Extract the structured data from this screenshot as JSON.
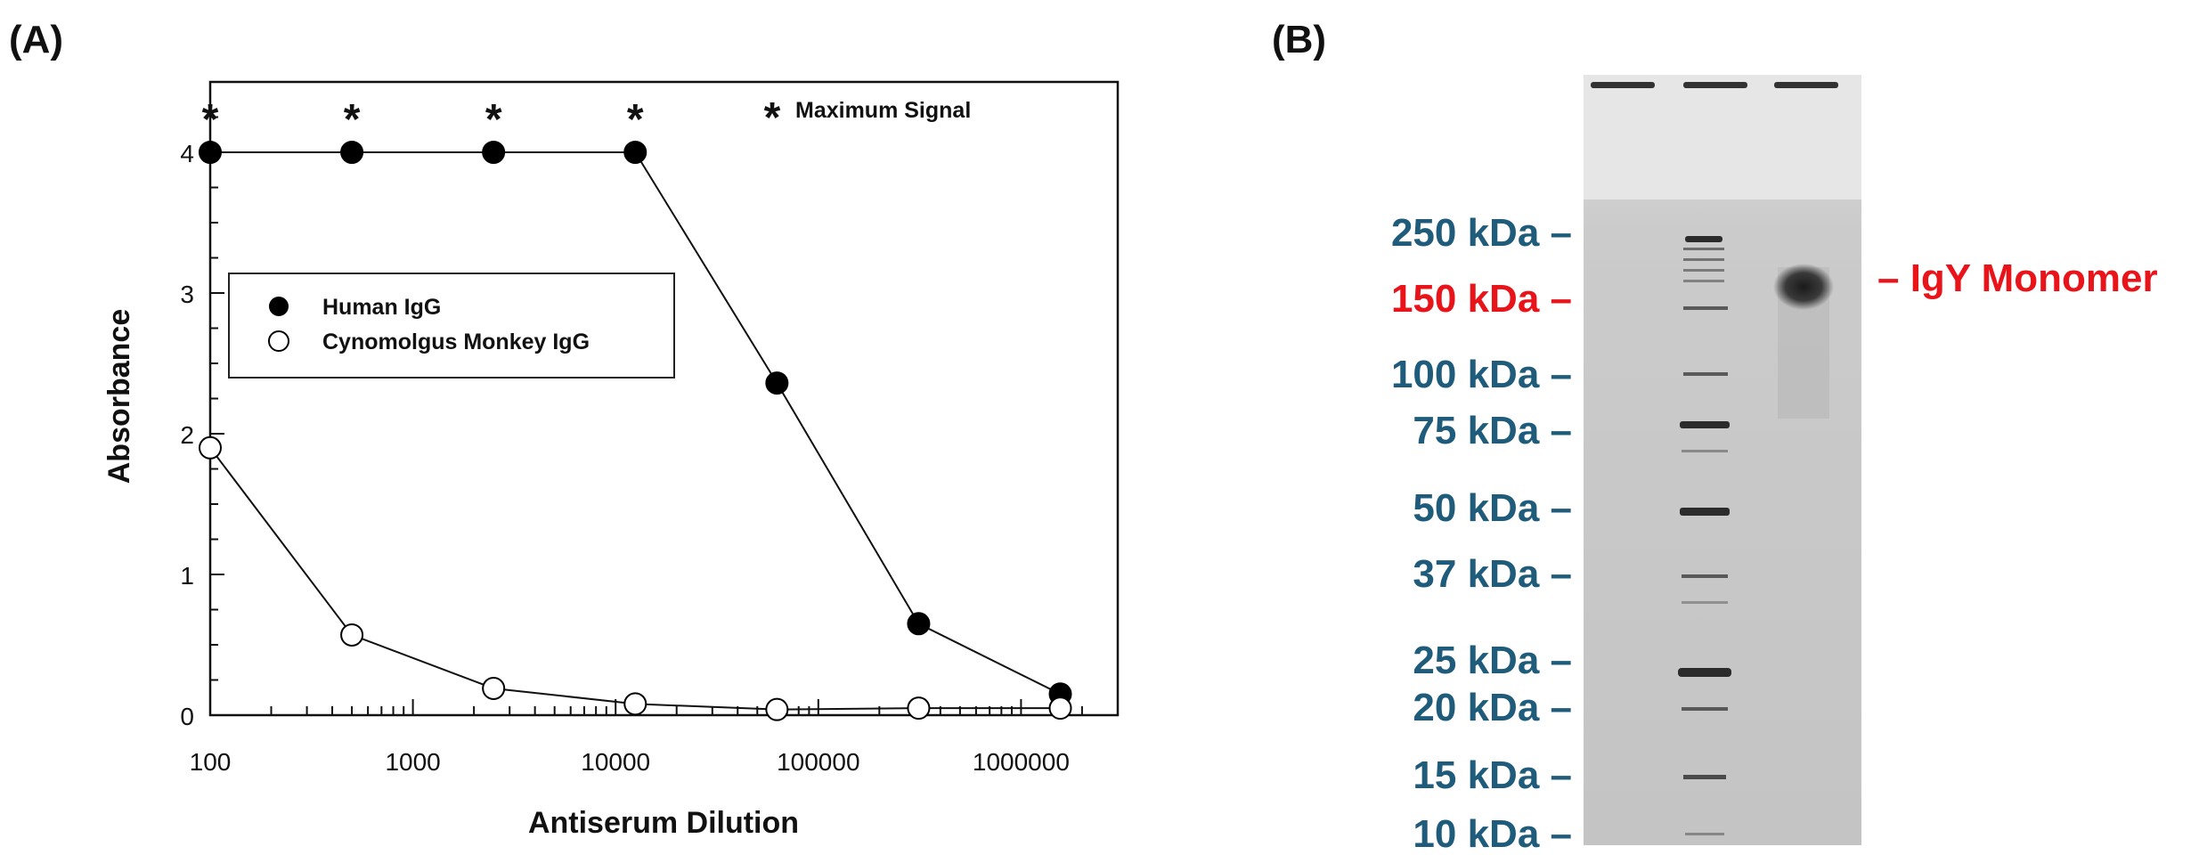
{
  "panel_a_label": "(A)",
  "panel_b_label": "(B)",
  "chart_data": {
    "type": "scatter",
    "xscale": "log",
    "xlim": [
      100,
      3000000
    ],
    "ylim": [
      0,
      4.5
    ],
    "xlabel": "Antiserum Dilution",
    "ylabel": "Absorbance",
    "xticks": [
      100,
      1000,
      10000,
      100000,
      1000000
    ],
    "xtick_labels": [
      "100",
      "1000",
      "10000",
      "100000",
      "1000000"
    ],
    "yticks": [
      0,
      1,
      2,
      3,
      4
    ],
    "ytick_labels": [
      "0",
      "1",
      "2",
      "3",
      "4"
    ],
    "legend_placement": "center-left",
    "series": [
      {
        "name": "Human IgG",
        "marker": "filled-circle",
        "color": "#000000",
        "x": [
          100,
          500,
          2500,
          12500,
          62500,
          312500,
          1562500
        ],
        "y": [
          4.0,
          4.0,
          4.0,
          4.0,
          2.36,
          0.65,
          0.15
        ]
      },
      {
        "name": "Cynomolgus Monkey IgG",
        "marker": "open-circle",
        "color": "#000000",
        "x": [
          100,
          500,
          2500,
          12500,
          62500,
          312500,
          1562500
        ],
        "y": [
          1.9,
          0.57,
          0.19,
          0.08,
          0.04,
          0.05,
          0.05
        ]
      }
    ],
    "annotations": {
      "asterisk_symbol": "*",
      "asterisk_x": [
        100,
        500,
        2500,
        12500
      ],
      "asterisk_legend_text": "Maximum Signal"
    }
  },
  "gel": {
    "markers": [
      {
        "label": "250 kDa –",
        "color": "#1f5b7a"
      },
      {
        "label": "150 kDa –",
        "color": "#e8141a"
      },
      {
        "label": "100 kDa –",
        "color": "#1f5b7a"
      },
      {
        "label": "75 kDa –",
        "color": "#1f5b7a"
      },
      {
        "label": "50 kDa –",
        "color": "#1f5b7a"
      },
      {
        "label": "37 kDa –",
        "color": "#1f5b7a"
      },
      {
        "label": "25 kDa –",
        "color": "#1f5b7a"
      },
      {
        "label": "20 kDa –",
        "color": "#1f5b7a"
      },
      {
        "label": "15 kDa –",
        "color": "#1f5b7a"
      },
      {
        "label": "10 kDa –",
        "color": "#1f5b7a"
      }
    ],
    "band_annotation": "– IgY Monomer",
    "band_annotation_color": "#e8141a"
  }
}
